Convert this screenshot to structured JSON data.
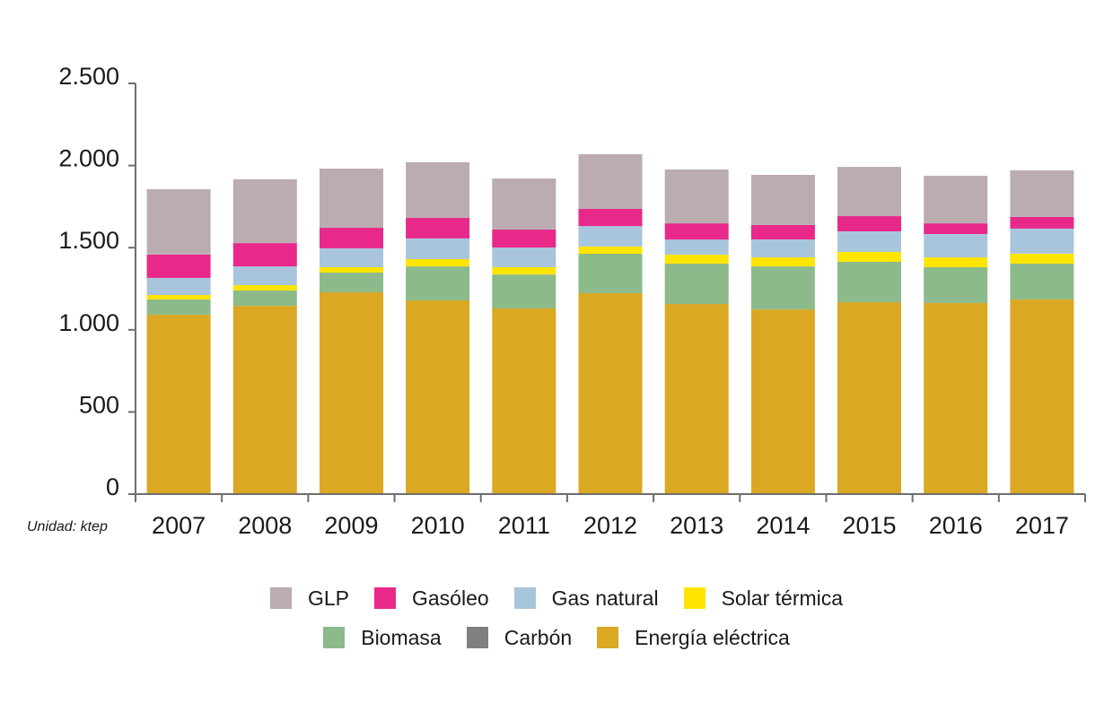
{
  "chart_data": {
    "type": "bar",
    "stacked": true,
    "title": "",
    "xlabel": "",
    "ylabel": "",
    "unit_note": "Unidad: ktep",
    "categories": [
      "2007",
      "2008",
      "2009",
      "2010",
      "2011",
      "2012",
      "2013",
      "2014",
      "2015",
      "2016",
      "2017"
    ],
    "ylim": [
      0,
      2500
    ],
    "yticks": [
      0,
      500,
      1000,
      1500,
      2000,
      2500
    ],
    "ytick_labels": [
      "0",
      "500",
      "1.000",
      "1.500",
      "2.000",
      "2.500"
    ],
    "grid": false,
    "legend_position": "bottom",
    "series": [
      {
        "name": "Energía eléctrica",
        "color": "#DBA823",
        "values": [
          1092,
          1146,
          1228,
          1179,
          1130,
          1223,
          1157,
          1124,
          1168,
          1163,
          1185
        ]
      },
      {
        "name": "Carbón",
        "color": "#808080",
        "values": [
          0,
          0,
          0,
          0,
          0,
          0,
          0,
          0,
          0,
          0,
          0
        ]
      },
      {
        "name": "Biomasa",
        "color": "#8CBA8B",
        "values": [
          93,
          93,
          120,
          207,
          207,
          240,
          246,
          262,
          246,
          218,
          218
        ]
      },
      {
        "name": "Solar térmica",
        "color": "#FFE500",
        "values": [
          27,
          33,
          33,
          44,
          44,
          44,
          54,
          55,
          60,
          60,
          60
        ]
      },
      {
        "name": "Gas natural",
        "color": "#A9C5DC",
        "values": [
          104,
          114,
          115,
          126,
          120,
          125,
          93,
          109,
          125,
          142,
          153
        ]
      },
      {
        "name": "Gasóleo",
        "color": "#E8298A",
        "values": [
          142,
          142,
          125,
          125,
          109,
          104,
          98,
          88,
          93,
          65,
          71
        ]
      },
      {
        "name": "GLP",
        "color": "#BBACB2",
        "values": [
          398,
          388,
          360,
          339,
          311,
          333,
          328,
          305,
          300,
          290,
          284
        ]
      }
    ]
  },
  "legend": {
    "rows": [
      [
        {
          "name": "GLP",
          "color": "#BBACB2"
        },
        {
          "name": "Gasóleo",
          "color": "#E8298A"
        },
        {
          "name": "Gas natural",
          "color": "#A9C5DC"
        },
        {
          "name": "Solar térmica",
          "color": "#FFE500"
        }
      ],
      [
        {
          "name": "Biomasa",
          "color": "#8CBA8B"
        },
        {
          "name": "Carbón",
          "color": "#808080"
        },
        {
          "name": "Energía eléctrica",
          "color": "#DBA823"
        }
      ]
    ]
  }
}
